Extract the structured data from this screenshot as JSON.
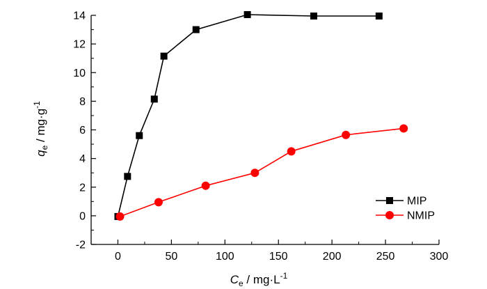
{
  "chart_data": {
    "type": "line",
    "xlabel": {
      "main": "C",
      "sub": "e",
      "unit": " / mg·L",
      "sup": "-1"
    },
    "ylabel": {
      "main": "q",
      "sub": "e",
      "unit": " / mg·g",
      "sup": "-1"
    },
    "xlim": [
      -25,
      300
    ],
    "ylim": [
      -2,
      14
    ],
    "xticks": [
      0,
      50,
      100,
      150,
      200,
      250,
      300
    ],
    "yticks": [
      -2,
      0,
      2,
      4,
      6,
      8,
      10,
      12,
      14
    ],
    "grid": false,
    "legend_position": "bottom-right",
    "series": [
      {
        "name": "MIP",
        "color": "#000000",
        "marker": "square",
        "x": [
          0,
          9,
          20,
          34,
          43,
          73,
          121,
          183,
          244
        ],
        "y": [
          -0.05,
          2.75,
          5.6,
          8.15,
          11.15,
          13.0,
          14.05,
          13.95,
          13.95
        ]
      },
      {
        "name": "NMIP",
        "color": "#ff0000",
        "marker": "circle",
        "x": [
          2,
          38,
          82,
          128,
          162,
          213,
          267
        ],
        "y": [
          -0.05,
          0.95,
          2.1,
          3.0,
          4.5,
          5.65,
          6.1
        ]
      }
    ]
  }
}
